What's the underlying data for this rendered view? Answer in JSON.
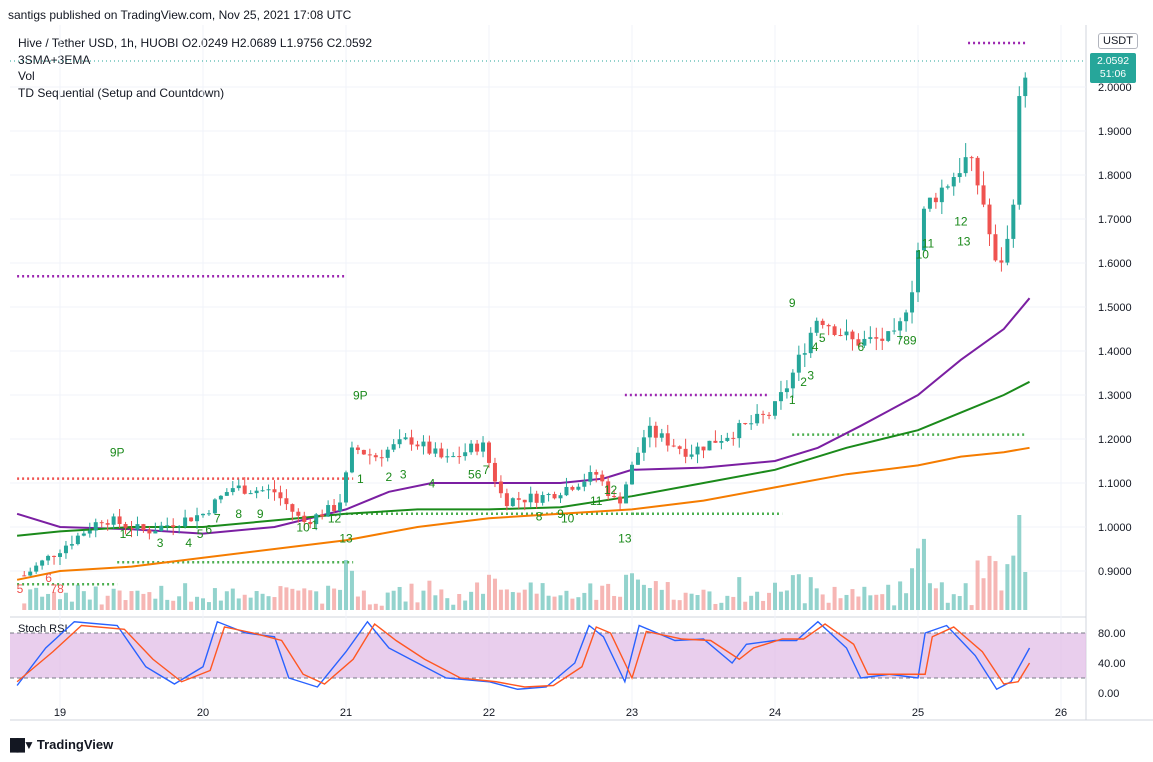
{
  "header": {
    "published": "santigs published on TradingView.com, Nov 25, 2021 17:08 UTC"
  },
  "legend": {
    "line1": "Hive / Tether USD, 1h, HUOBI  O2.0249  H2.0689  L1.9756  C2.0592",
    "line2": "3SMA+3EMA",
    "line3": "Vol",
    "line4": "TD Sequential (Setup and Countdown)"
  },
  "price_axis": {
    "unit": "USDT",
    "current_price": "2.0592",
    "countdown": "51:06",
    "ticks": [
      "2.0000",
      "1.9000",
      "1.8000",
      "1.7000",
      "1.6000",
      "1.5000",
      "1.4000",
      "1.3000",
      "1.2000",
      "1.1000",
      "1.0000",
      "0.9000"
    ]
  },
  "rsi_panel": {
    "title": "Stoch RSI",
    "ticks": [
      "80.00",
      "40.00",
      "0.00"
    ],
    "upper_band": 80,
    "lower_band": 20
  },
  "footer": {
    "brand": "TradingView",
    "logo_icon": "tradingview-logo-icon"
  },
  "colors": {
    "up": "#26a69a",
    "down": "#ef5350",
    "sma_purple": "#7b1fa2",
    "sma_green": "#1b8a1b",
    "sma_orange": "#f57c00",
    "rsi_k": "#2962ff",
    "rsi_d": "#ff5722",
    "band_fill": "#e1bee7"
  },
  "chart_data": {
    "type": "candlestick",
    "symbol": "Hive / Tether USD",
    "interval": "1h",
    "exchange": "HUOBI",
    "x_ticks": [
      "19",
      "20",
      "21",
      "22",
      "23",
      "24",
      "25",
      "26"
    ],
    "ylim": [
      0.82,
      2.1
    ],
    "ohlc_anchor_points": [
      {
        "day": 18.75,
        "close": 0.89
      },
      {
        "day": 19.0,
        "close": 0.95
      },
      {
        "day": 19.3,
        "close": 1.02
      },
      {
        "day": 19.6,
        "close": 0.99
      },
      {
        "day": 20.0,
        "close": 1.03
      },
      {
        "day": 20.2,
        "close": 1.09
      },
      {
        "day": 20.5,
        "close": 1.08
      },
      {
        "day": 20.7,
        "close": 1.01
      },
      {
        "day": 20.95,
        "close": 1.05
      },
      {
        "day": 21.05,
        "close": 1.18
      },
      {
        "day": 21.2,
        "close": 1.16
      },
      {
        "day": 21.45,
        "close": 1.2
      },
      {
        "day": 21.7,
        "close": 1.15
      },
      {
        "day": 21.95,
        "close": 1.19
      },
      {
        "day": 22.1,
        "close": 1.06
      },
      {
        "day": 22.4,
        "close": 1.07
      },
      {
        "day": 22.75,
        "close": 1.12
      },
      {
        "day": 22.9,
        "close": 1.05
      },
      {
        "day": 23.1,
        "close": 1.22
      },
      {
        "day": 23.4,
        "close": 1.17
      },
      {
        "day": 23.8,
        "close": 1.23
      },
      {
        "day": 23.98,
        "close": 1.26
      },
      {
        "day": 24.1,
        "close": 1.33
      },
      {
        "day": 24.3,
        "close": 1.48
      },
      {
        "day": 24.55,
        "close": 1.42
      },
      {
        "day": 24.85,
        "close": 1.43
      },
      {
        "day": 24.96,
        "close": 1.55
      },
      {
        "day": 25.05,
        "close": 1.73
      },
      {
        "day": 25.2,
        "close": 1.78
      },
      {
        "day": 25.35,
        "close": 1.84
      },
      {
        "day": 25.45,
        "close": 1.75
      },
      {
        "day": 25.55,
        "close": 1.58
      },
      {
        "day": 25.65,
        "close": 1.67
      },
      {
        "day": 25.72,
        "close": 2.02
      },
      {
        "day": 25.78,
        "close": 2.0592
      }
    ],
    "moving_averages": [
      {
        "points": [
          [
            18.7,
            1.03
          ],
          [
            19.0,
            1.0
          ],
          [
            19.5,
            0.995
          ],
          [
            20.0,
            0.985
          ],
          [
            20.5,
            1.0
          ],
          [
            21.0,
            1.04
          ],
          [
            21.3,
            1.08
          ],
          [
            21.6,
            1.1
          ],
          [
            22.0,
            1.1
          ],
          [
            22.5,
            1.1
          ],
          [
            22.8,
            1.11
          ],
          [
            23.0,
            1.13
          ],
          [
            23.5,
            1.135
          ],
          [
            24.0,
            1.15
          ],
          [
            24.3,
            1.18
          ],
          [
            24.6,
            1.23
          ],
          [
            25.0,
            1.3
          ],
          [
            25.3,
            1.38
          ],
          [
            25.6,
            1.45
          ],
          [
            25.78,
            1.52
          ]
        ]
      },
      {
        "points": [
          [
            18.7,
            0.98
          ],
          [
            19.0,
            0.99
          ],
          [
            19.5,
            1.0
          ],
          [
            20.0,
            1.0
          ],
          [
            20.5,
            1.015
          ],
          [
            21.0,
            1.03
          ],
          [
            21.5,
            1.04
          ],
          [
            22.0,
            1.04
          ],
          [
            22.5,
            1.045
          ],
          [
            23.0,
            1.07
          ],
          [
            23.5,
            1.1
          ],
          [
            24.0,
            1.13
          ],
          [
            24.5,
            1.18
          ],
          [
            25.0,
            1.22
          ],
          [
            25.3,
            1.26
          ],
          [
            25.6,
            1.3
          ],
          [
            25.78,
            1.33
          ]
        ]
      },
      {
        "points": [
          [
            18.7,
            0.88
          ],
          [
            19.0,
            0.9
          ],
          [
            19.5,
            0.91
          ],
          [
            20.0,
            0.93
          ],
          [
            20.5,
            0.95
          ],
          [
            21.0,
            0.97
          ],
          [
            21.5,
            1.0
          ],
          [
            22.0,
            1.02
          ],
          [
            22.5,
            1.03
          ],
          [
            23.0,
            1.04
          ],
          [
            23.5,
            1.06
          ],
          [
            24.0,
            1.09
          ],
          [
            24.5,
            1.12
          ],
          [
            25.0,
            1.14
          ],
          [
            25.3,
            1.16
          ],
          [
            25.6,
            1.17
          ],
          [
            25.78,
            1.18
          ]
        ]
      }
    ],
    "td_levels": [
      {
        "x0": 18.7,
        "x1": 21.0,
        "price": 1.57,
        "color": "#9c27b0"
      },
      {
        "x0": 18.7,
        "x1": 21.05,
        "price": 1.11,
        "color": "#ef5350"
      },
      {
        "x0": 18.7,
        "x1": 19.4,
        "price": 0.87,
        "color": "#4caf50"
      },
      {
        "x0": 19.4,
        "x1": 21.05,
        "price": 0.92,
        "color": "#4caf50"
      },
      {
        "x0": 21.0,
        "x1": 23.1,
        "price": 1.03,
        "color": "#4caf50"
      },
      {
        "x0": 23.0,
        "x1": 24.05,
        "price": 1.03,
        "color": "#4caf50"
      },
      {
        "x0": 22.95,
        "x1": 23.95,
        "price": 1.3,
        "color": "#9c27b0"
      },
      {
        "x0": 24.12,
        "x1": 25.75,
        "price": 1.21,
        "color": "#4caf50"
      },
      {
        "x0": 25.35,
        "x1": 25.75,
        "price": 2.1,
        "color": "#9c27b0"
      }
    ],
    "td_labels": [
      {
        "text": "9P",
        "day": 19.4,
        "price": 1.16,
        "color": "#1b8a1b"
      },
      {
        "text": "1",
        "day": 19.44,
        "price": 0.975,
        "color": "#1b8a1b"
      },
      {
        "text": "2",
        "day": 19.48,
        "price": 0.98,
        "color": "#1b8a1b"
      },
      {
        "text": "3",
        "day": 19.7,
        "price": 0.955,
        "color": "#1b8a1b"
      },
      {
        "text": "4",
        "day": 19.9,
        "price": 0.955,
        "color": "#1b8a1b"
      },
      {
        "text": "5",
        "day": 19.98,
        "price": 0.975,
        "color": "#1b8a1b"
      },
      {
        "text": "6",
        "day": 20.04,
        "price": 0.985,
        "color": "#1b8a1b"
      },
      {
        "text": "7",
        "day": 20.1,
        "price": 1.01,
        "color": "#1b8a1b"
      },
      {
        "text": "8",
        "day": 20.25,
        "price": 1.02,
        "color": "#1b8a1b"
      },
      {
        "text": "9",
        "day": 20.4,
        "price": 1.02,
        "color": "#1b8a1b"
      },
      {
        "text": "10",
        "day": 20.7,
        "price": 0.99,
        "color": "#1b8a1b"
      },
      {
        "text": "1",
        "day": 20.78,
        "price": 0.995,
        "color": "#1b8a1b"
      },
      {
        "text": "12",
        "day": 20.92,
        "price": 1.01,
        "color": "#1b8a1b"
      },
      {
        "text": "13",
        "day": 21.0,
        "price": 0.965,
        "color": "#1b8a1b"
      },
      {
        "text": "9P",
        "day": 21.1,
        "price": 1.29,
        "color": "#1b8a1b"
      },
      {
        "text": "1",
        "day": 21.1,
        "price": 1.1,
        "color": "#1b8a1b"
      },
      {
        "text": "2",
        "day": 21.3,
        "price": 1.105,
        "color": "#1b8a1b"
      },
      {
        "text": "3",
        "day": 21.4,
        "price": 1.11,
        "color": "#1b8a1b"
      },
      {
        "text": "4",
        "day": 21.6,
        "price": 1.09,
        "color": "#1b8a1b"
      },
      {
        "text": "56",
        "day": 21.9,
        "price": 1.11,
        "color": "#1b8a1b"
      },
      {
        "text": "7",
        "day": 21.98,
        "price": 1.12,
        "color": "#1b8a1b"
      },
      {
        "text": "8",
        "day": 22.35,
        "price": 1.015,
        "color": "#1b8a1b"
      },
      {
        "text": "9",
        "day": 22.5,
        "price": 1.02,
        "color": "#1b8a1b"
      },
      {
        "text": "10",
        "day": 22.55,
        "price": 1.01,
        "color": "#1b8a1b"
      },
      {
        "text": "11",
        "day": 22.75,
        "price": 1.05,
        "color": "#1b8a1b"
      },
      {
        "text": "12",
        "day": 22.85,
        "price": 1.075,
        "color": "#1b8a1b"
      },
      {
        "text": "13",
        "day": 22.95,
        "price": 0.965,
        "color": "#1b8a1b"
      },
      {
        "text": "1",
        "day": 24.12,
        "price": 1.28,
        "color": "#1b8a1b"
      },
      {
        "text": "2",
        "day": 24.2,
        "price": 1.32,
        "color": "#1b8a1b"
      },
      {
        "text": "3",
        "day": 24.25,
        "price": 1.335,
        "color": "#1b8a1b"
      },
      {
        "text": "4",
        "day": 24.28,
        "price": 1.4,
        "color": "#1b8a1b"
      },
      {
        "text": "5",
        "day": 24.33,
        "price": 1.42,
        "color": "#1b8a1b"
      },
      {
        "text": "9",
        "day": 24.12,
        "price": 1.5,
        "color": "#1b8a1b"
      },
      {
        "text": "6",
        "day": 24.6,
        "price": 1.4,
        "color": "#1b8a1b"
      },
      {
        "text": "789",
        "day": 24.92,
        "price": 1.415,
        "color": "#1b8a1b"
      },
      {
        "text": "10",
        "day": 25.03,
        "price": 1.61,
        "color": "#1b8a1b"
      },
      {
        "text": "11",
        "day": 25.07,
        "price": 1.635,
        "color": "#1b8a1b"
      },
      {
        "text": "12",
        "day": 25.3,
        "price": 1.685,
        "color": "#1b8a1b"
      },
      {
        "text": "13",
        "day": 25.32,
        "price": 1.64,
        "color": "#1b8a1b"
      }
    ],
    "td_neg_labels": [
      {
        "text": "5",
        "day": 18.72,
        "price": 0.85,
        "color": "#ef5350"
      },
      {
        "text": "6",
        "day": 18.92,
        "price": 0.875,
        "color": "#ef5350"
      },
      {
        "text": "78",
        "day": 18.98,
        "price": 0.85,
        "color": "#ef5350"
      }
    ],
    "stoch_rsi": {
      "k": [
        [
          18.7,
          10
        ],
        [
          18.9,
          60
        ],
        [
          19.1,
          95
        ],
        [
          19.4,
          90
        ],
        [
          19.6,
          35
        ],
        [
          19.8,
          12
        ],
        [
          20.0,
          35
        ],
        [
          20.1,
          95
        ],
        [
          20.3,
          80
        ],
        [
          20.5,
          75
        ],
        [
          20.6,
          20
        ],
        [
          20.8,
          8
        ],
        [
          21.0,
          55
        ],
        [
          21.15,
          95
        ],
        [
          21.3,
          60
        ],
        [
          21.5,
          40
        ],
        [
          21.7,
          20
        ],
        [
          22.0,
          15
        ],
        [
          22.2,
          5
        ],
        [
          22.4,
          8
        ],
        [
          22.6,
          40
        ],
        [
          22.7,
          90
        ],
        [
          22.8,
          75
        ],
        [
          22.95,
          15
        ],
        [
          23.05,
          90
        ],
        [
          23.3,
          70
        ],
        [
          23.5,
          72
        ],
        [
          23.7,
          40
        ],
        [
          23.8,
          65
        ],
        [
          24.0,
          70
        ],
        [
          24.15,
          70
        ],
        [
          24.3,
          95
        ],
        [
          24.5,
          60
        ],
        [
          24.6,
          20
        ],
        [
          24.8,
          25
        ],
        [
          25.0,
          20
        ],
        [
          25.05,
          80
        ],
        [
          25.2,
          90
        ],
        [
          25.4,
          50
        ],
        [
          25.55,
          5
        ],
        [
          25.65,
          15
        ],
        [
          25.78,
          60
        ]
      ],
      "d": [
        [
          18.7,
          15
        ],
        [
          18.95,
          55
        ],
        [
          19.15,
          90
        ],
        [
          19.45,
          85
        ],
        [
          19.65,
          45
        ],
        [
          19.85,
          15
        ],
        [
          20.05,
          30
        ],
        [
          20.15,
          88
        ],
        [
          20.35,
          80
        ],
        [
          20.55,
          70
        ],
        [
          20.7,
          25
        ],
        [
          20.85,
          12
        ],
        [
          21.05,
          45
        ],
        [
          21.2,
          92
        ],
        [
          21.35,
          70
        ],
        [
          21.55,
          45
        ],
        [
          21.8,
          20
        ],
        [
          22.05,
          15
        ],
        [
          22.25,
          8
        ],
        [
          22.45,
          10
        ],
        [
          22.65,
          35
        ],
        [
          22.75,
          88
        ],
        [
          22.85,
          80
        ],
        [
          23.0,
          20
        ],
        [
          23.1,
          82
        ],
        [
          23.35,
          72
        ],
        [
          23.55,
          70
        ],
        [
          23.75,
          45
        ],
        [
          23.85,
          60
        ],
        [
          24.05,
          72
        ],
        [
          24.2,
          72
        ],
        [
          24.35,
          92
        ],
        [
          24.55,
          65
        ],
        [
          24.65,
          25
        ],
        [
          24.85,
          25
        ],
        [
          25.05,
          25
        ],
        [
          25.1,
          75
        ],
        [
          25.25,
          88
        ],
        [
          25.45,
          55
        ],
        [
          25.6,
          12
        ],
        [
          25.7,
          15
        ],
        [
          25.78,
          40
        ]
      ]
    },
    "rsi_ylim": [
      0,
      100
    ]
  }
}
